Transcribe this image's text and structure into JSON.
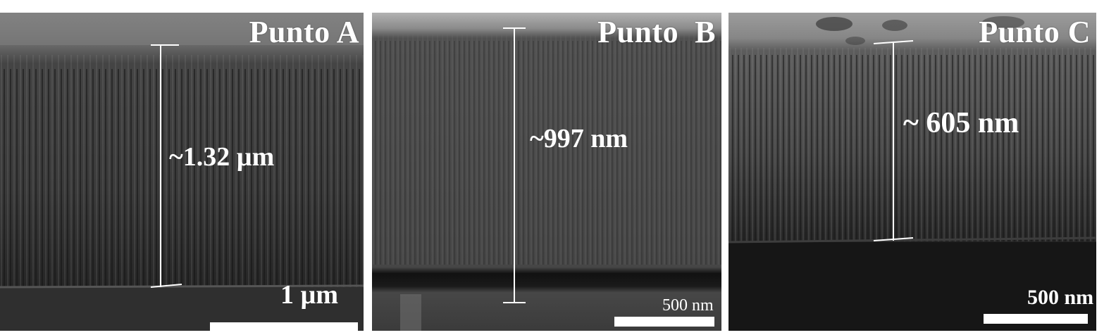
{
  "panels": [
    {
      "title": "Punto A",
      "thickness": "~1.32 µm",
      "scale": "1 µm"
    },
    {
      "title": "Punto  B",
      "thickness": "~997 nm",
      "scale": "500 nm"
    },
    {
      "title": "Punto C",
      "thickness": "~ 605 nm",
      "scale": "500 nm"
    }
  ],
  "colors": {
    "film": "#474747",
    "fiber_dark": "#1c1c1c",
    "fiber_light": "#7a7a7a",
    "substrate": "#2b2b2b",
    "top": "#9a9a9a",
    "annotation": "#ffffff"
  }
}
